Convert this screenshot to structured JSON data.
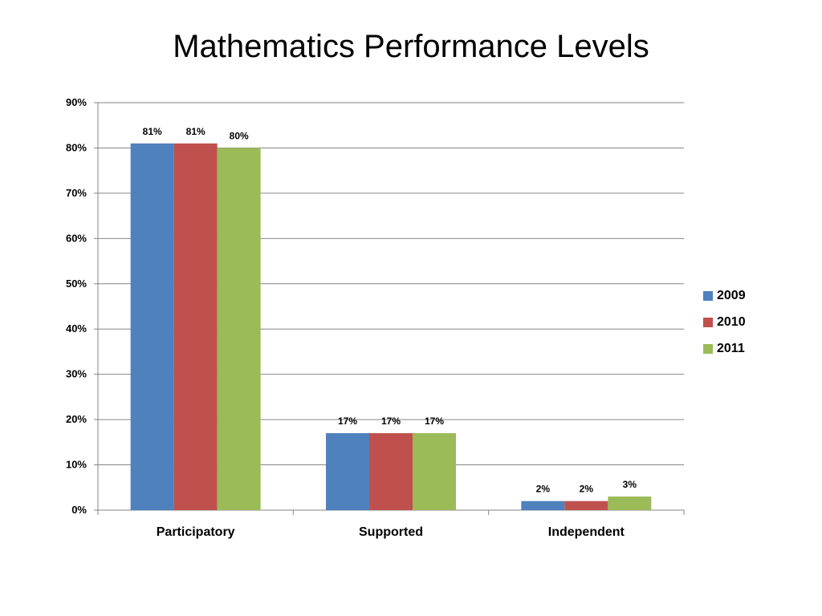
{
  "chart_data": {
    "type": "bar",
    "title": "Mathematics Performance Levels",
    "xlabel": "",
    "ylabel": "",
    "categories": [
      "Participatory",
      "Supported",
      "Independent"
    ],
    "series": [
      {
        "name": "2009",
        "color": "#4F81BD",
        "values": [
          81,
          17,
          2
        ],
        "labels": [
          "81%",
          "17%",
          "2%"
        ]
      },
      {
        "name": "2010",
        "color": "#C0504D",
        "values": [
          81,
          17,
          2
        ],
        "labels": [
          "81%",
          "17%",
          "2%"
        ]
      },
      {
        "name": "2011",
        "color": "#9BBB59",
        "values": [
          80,
          17,
          3
        ],
        "labels": [
          "80%",
          "17%",
          "3%"
        ]
      }
    ],
    "ylim": [
      0,
      90
    ],
    "yticks": [
      0,
      10,
      20,
      30,
      40,
      50,
      60,
      70,
      80,
      90
    ],
    "ytick_labels": [
      "0%",
      "10%",
      "20%",
      "30%",
      "40%",
      "50%",
      "60%",
      "70%",
      "80%",
      "90%"
    ],
    "grid": true,
    "legend_position": "right"
  }
}
